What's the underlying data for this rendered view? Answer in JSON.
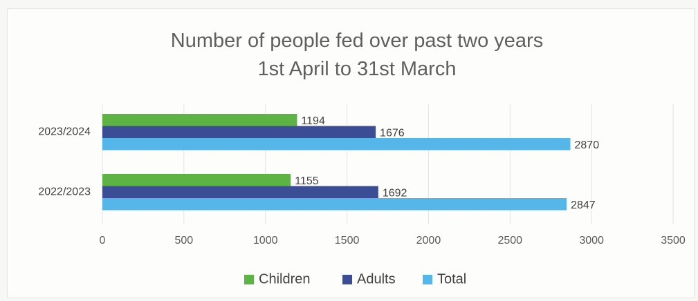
{
  "chart_data": {
    "type": "bar",
    "orientation": "horizontal",
    "title": "Number of people fed over past two years",
    "subtitle": "1st April to 31st March",
    "categories": [
      "2023/2024",
      "2022/2023"
    ],
    "series": [
      {
        "name": "Children",
        "values": [
          1194,
          1155
        ],
        "color": "#5db343"
      },
      {
        "name": "Adults",
        "values": [
          1676,
          1692
        ],
        "color": "#3b4d94"
      },
      {
        "name": "Total",
        "values": [
          2870,
          2847
        ],
        "color": "#55b6ea"
      }
    ],
    "xlim": [
      0,
      3500
    ],
    "xticks": [
      "0",
      "500",
      "1000",
      "1500",
      "2000",
      "2500",
      "3000",
      "3500"
    ],
    "grid": true,
    "legend": "bottom",
    "data_labels": true
  }
}
